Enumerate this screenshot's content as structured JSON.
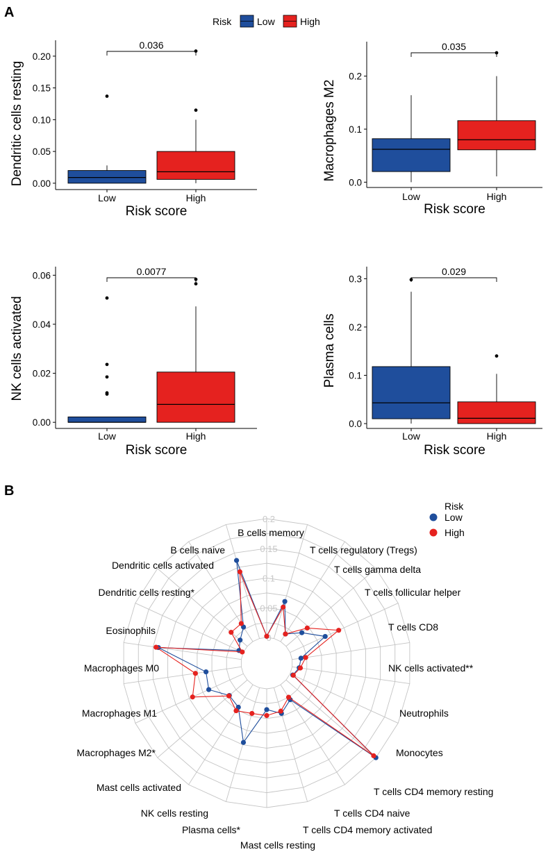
{
  "panel_labels": {
    "a": "A",
    "b": "B"
  },
  "legend_a": {
    "title": "Risk",
    "items": [
      {
        "label": "Low",
        "color": "#1f4e9c"
      },
      {
        "label": "High",
        "color": "#e5221f"
      }
    ]
  },
  "legend_b": {
    "title": "Risk",
    "items": [
      {
        "label": "Low",
        "color": "#1f4e9c"
      },
      {
        "label": "High",
        "color": "#e5221f"
      }
    ]
  },
  "chart_data": [
    {
      "type": "box",
      "title": "",
      "ylabel": "Dendritic cells resting",
      "xlabel": "Risk score",
      "categories": [
        "Low",
        "High"
      ],
      "ylim": [
        -0.01,
        0.225
      ],
      "yticks": [
        0.0,
        0.05,
        0.1,
        0.15,
        0.2
      ],
      "ytick_labels": [
        "0.00",
        "0.05",
        "0.10",
        "0.15",
        "0.20"
      ],
      "p_value": "0.036",
      "boxes": [
        {
          "group": "Low",
          "min": 0.0,
          "q1": 0.0,
          "median": 0.009,
          "q3": 0.02,
          "max": 0.028,
          "outliers": [
            0.137
          ]
        },
        {
          "group": "High",
          "min": 0.0,
          "q1": 0.006,
          "median": 0.018,
          "q3": 0.05,
          "max": 0.1,
          "outliers": [
            0.115,
            0.208
          ]
        }
      ]
    },
    {
      "type": "box",
      "title": "",
      "ylabel": "Macrophages M2",
      "xlabel": "Risk score",
      "categories": [
        "Low",
        "High"
      ],
      "ylim": [
        -0.01,
        0.265
      ],
      "yticks": [
        0.0,
        0.1,
        0.2
      ],
      "ytick_labels": [
        "0.0",
        "0.1",
        "0.2"
      ],
      "p_value": "0.035",
      "boxes": [
        {
          "group": "Low",
          "min": 0.0,
          "q1": 0.02,
          "median": 0.062,
          "q3": 0.082,
          "max": 0.164,
          "outliers": []
        },
        {
          "group": "High",
          "min": 0.011,
          "q1": 0.061,
          "median": 0.08,
          "q3": 0.116,
          "max": 0.2,
          "outliers": [
            0.244
          ]
        }
      ]
    },
    {
      "type": "box",
      "title": "",
      "ylabel": "NK cells activated",
      "xlabel": "Risk score",
      "categories": [
        "Low",
        "High"
      ],
      "ylim": [
        -0.0025,
        0.0635
      ],
      "yticks": [
        0.0,
        0.02,
        0.04,
        0.06
      ],
      "ytick_labels": [
        "0.00",
        "0.02",
        "0.04",
        "0.06"
      ],
      "p_value": "0.0077",
      "boxes": [
        {
          "group": "Low",
          "min": 0.0,
          "q1": 0.0,
          "median": 0.0,
          "q3": 0.0022,
          "max": 0.0022,
          "outliers": [
            0.0115,
            0.012,
            0.0185,
            0.0236,
            0.0507
          ]
        },
        {
          "group": "High",
          "min": 0.0,
          "q1": 0.0,
          "median": 0.0073,
          "q3": 0.0205,
          "max": 0.0473,
          "outliers": [
            0.0565,
            0.0583
          ]
        }
      ]
    },
    {
      "type": "box",
      "title": "",
      "ylabel": "Plasma cells",
      "xlabel": "Risk score",
      "categories": [
        "Low",
        "High"
      ],
      "ylim": [
        -0.01,
        0.325
      ],
      "yticks": [
        0.0,
        0.1,
        0.2,
        0.3
      ],
      "ytick_labels": [
        "0.0",
        "0.1",
        "0.2",
        "0.3"
      ],
      "p_value": "0.029",
      "boxes": [
        {
          "group": "Low",
          "min": 0.0,
          "q1": 0.01,
          "median": 0.043,
          "q3": 0.118,
          "max": 0.273,
          "outliers": [
            0.298
          ]
        },
        {
          "group": "High",
          "min": 0.0,
          "q1": 0.0,
          "median": 0.011,
          "q3": 0.045,
          "max": 0.103,
          "outliers": [
            0.14
          ]
        }
      ]
    },
    {
      "type": "radar",
      "title": "",
      "rlim": [
        0,
        0.2
      ],
      "rticks": [
        0,
        0.05,
        0.1,
        0.15,
        0.2
      ],
      "rtick_labels": [
        "0",
        "0.05",
        "0.1",
        "0.15",
        "0.2"
      ],
      "categories": [
        "B cells memory",
        "T cells regulatory (Tregs)",
        "T cells gamma delta",
        "T cells follicular helper",
        "T cells CD8",
        "NK cells activated**",
        "Neutrophils",
        "Monocytes",
        "T cells CD4 memory resting",
        "T cells CD4 naive",
        "T cells CD4 memory activated",
        "Mast cells resting",
        "Plasma cells*",
        "NK cells resting",
        "Mast cells activated",
        "Macrophages M2*",
        "Macrophages M1",
        "Macrophages M0",
        "Eosinophils",
        "Dendritic cells resting*",
        "Dendritic cells activated",
        "B cells naive"
      ],
      "series": [
        {
          "name": "Low",
          "color": "#1f4e9c",
          "values": [
            0.002,
            0.065,
            0.015,
            0.035,
            0.065,
            0.015,
            0.012,
            0.005,
            0.2,
            0.03,
            0.045,
            0.035,
            0.096,
            0.045,
            0.04,
            0.064,
            0.06,
            0.141,
            0.008,
            0.016,
            0.029,
            0.137
          ]
        },
        {
          "name": "High",
          "color": "#e5221f",
          "values": [
            0.002,
            0.055,
            0.015,
            0.047,
            0.09,
            0.023,
            0.014,
            0.006,
            0.195,
            0.025,
            0.041,
            0.045,
            0.045,
            0.052,
            0.041,
            0.094,
            0.078,
            0.145,
            0.002,
            0.036,
            0.036,
            0.117
          ]
        }
      ]
    }
  ]
}
